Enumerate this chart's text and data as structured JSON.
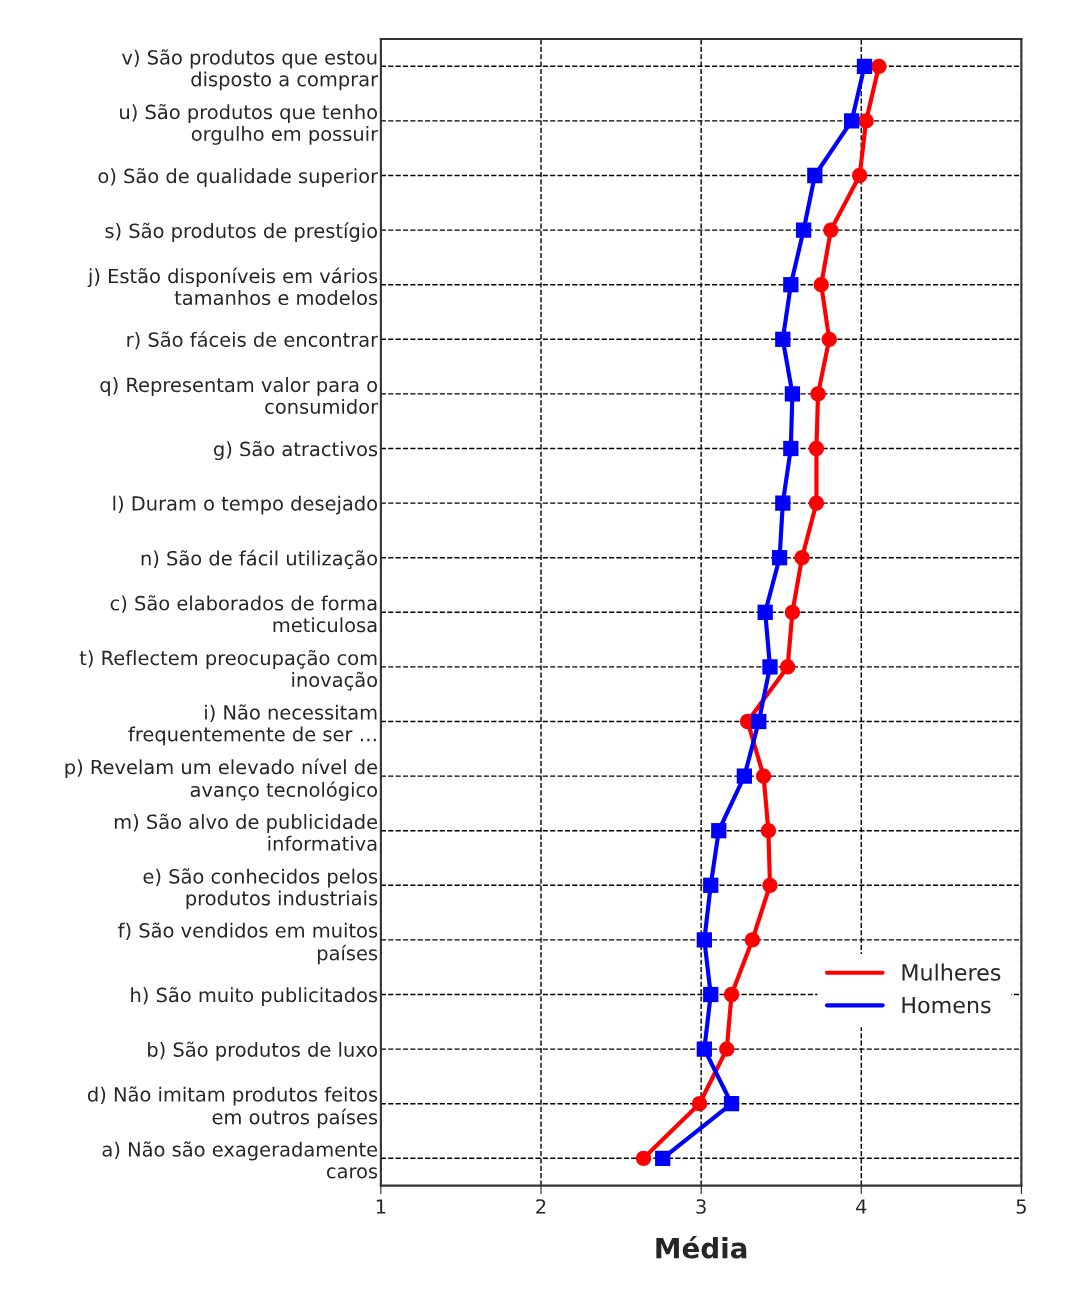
{
  "chart_data": {
    "type": "line",
    "orientation": "horizontal",
    "xlabel": "Média",
    "categories": [
      "v) São produtos que estou\ndisposto a comprar",
      "u) São produtos que tenho\norgulho em possuir",
      "o) São de qualidade superior",
      "s) São produtos de prestígio",
      "j) Estão disponíveis em vários\ntamanhos e modelos",
      "r) São fáceis de encontrar",
      "q) Representam valor para o\nconsumidor",
      "g) São atractivos",
      "l) Duram o tempo desejado",
      "n) São de fácil utilização",
      "c) São elaborados de forma\nmeticulosa",
      "t) Reflectem preocupação com\ninovação",
      "i) Não necessitam\nfrequentemente de ser …",
      "p) Revelam um elevado nível de\navanço tecnológico",
      "m) São alvo de publicidade\ninformativa",
      "e) São conhecidos pelos\nprodutos industriais",
      "f) São vendidos em muitos\npaíses",
      "h) São muito publicitados",
      "b) São produtos de luxo",
      "d) Não imitam produtos feitos\nem outros países",
      "a) Não são exageradamente\ncaros"
    ],
    "series": [
      {
        "name": "Mulheres",
        "color": "#ff0000",
        "marker": "circle",
        "values": [
          4.11,
          4.03,
          3.99,
          3.81,
          3.75,
          3.8,
          3.73,
          3.72,
          3.72,
          3.63,
          3.57,
          3.54,
          3.29,
          3.39,
          3.42,
          3.43,
          3.32,
          3.19,
          3.16,
          2.99,
          2.64
        ]
      },
      {
        "name": "Homens",
        "color": "#0000ff",
        "marker": "square",
        "values": [
          4.02,
          3.94,
          3.71,
          3.64,
          3.56,
          3.51,
          3.57,
          3.56,
          3.51,
          3.49,
          3.4,
          3.43,
          3.36,
          3.27,
          3.11,
          3.06,
          3.02,
          3.06,
          3.02,
          3.19,
          2.76
        ]
      }
    ],
    "xlim": [
      1,
      5
    ],
    "xticks": [
      1,
      2,
      3,
      4,
      5
    ],
    "grid": true,
    "line_style": "solid",
    "legend": "right"
  }
}
